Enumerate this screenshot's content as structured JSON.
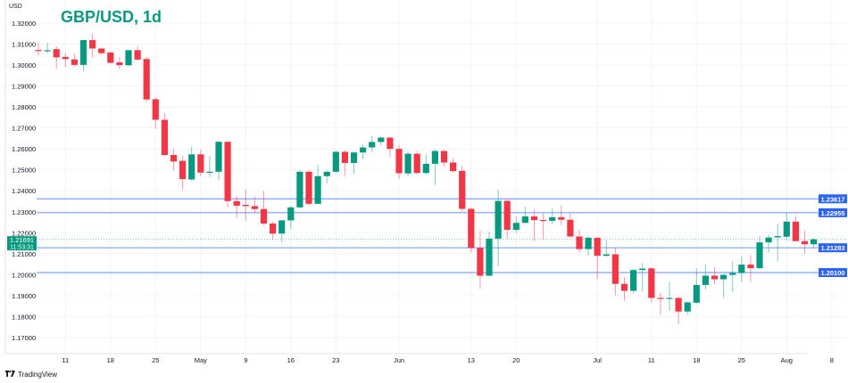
{
  "chart_data": {
    "type": "candlestick",
    "title": "GBP/USD, 1d",
    "currency_label": "USD",
    "ylim": [
      1.165,
      1.325
    ],
    "y_ticks": [
      "1.32000",
      "1.31000",
      "1.30000",
      "1.29000",
      "1.28000",
      "1.27000",
      "1.26000",
      "1.25000",
      "1.24000",
      "1.23000",
      "1.22000",
      "1.21000",
      "1.20000",
      "1.19000",
      "1.18000",
      "1.17000"
    ],
    "x_ticks": [
      {
        "label": "11",
        "date": "2022-04-11"
      },
      {
        "label": "18",
        "date": "2022-04-18"
      },
      {
        "label": "25",
        "date": "2022-04-25"
      },
      {
        "label": "May",
        "date": "2022-05-02"
      },
      {
        "label": "9",
        "date": "2022-05-09"
      },
      {
        "label": "16",
        "date": "2022-05-16"
      },
      {
        "label": "23",
        "date": "2022-05-23"
      },
      {
        "label": "Jun",
        "date": "2022-06-01"
      },
      {
        "label": "13",
        "date": "2022-06-13"
      },
      {
        "label": "20",
        "date": "2022-06-20"
      },
      {
        "label": "Jul",
        "date": "2022-07-01"
      },
      {
        "label": "11",
        "date": "2022-07-11"
      },
      {
        "label": "18",
        "date": "2022-07-18"
      },
      {
        "label": "25",
        "date": "2022-07-25"
      },
      {
        "label": "Aug",
        "date": "2022-08-01"
      },
      {
        "label": "8",
        "date": "2022-08-08"
      }
    ],
    "grid": true,
    "colors": {
      "up": "#089981",
      "down": "#f23645",
      "level_line": "#2962ff",
      "grid": "#f0f3fa"
    },
    "horizontal_levels": [
      {
        "value": 1.23617,
        "label": "1.23617"
      },
      {
        "value": 1.22955,
        "label": "1.22955"
      },
      {
        "value": 1.21283,
        "label": "1.21283"
      },
      {
        "value": 1.201,
        "label": "1.20100"
      }
    ],
    "last_price": {
      "value": 1.21691,
      "label": "1.21691",
      "countdown": "11:53:31"
    },
    "columns": [
      "date",
      "open",
      "high",
      "low",
      "close"
    ],
    "candles": [
      [
        "2022-04-06",
        1.3072,
        1.3107,
        1.3047,
        1.3069
      ],
      [
        "2022-04-07",
        1.3069,
        1.3107,
        1.3054,
        1.3071
      ],
      [
        "2022-04-08",
        1.3076,
        1.3089,
        1.2983,
        1.3037
      ],
      [
        "2022-04-11",
        1.3039,
        1.3057,
        1.299,
        1.3029
      ],
      [
        "2022-04-12",
        1.3027,
        1.3054,
        1.2994,
        1.3001
      ],
      [
        "2022-04-13",
        1.3001,
        1.312,
        1.2971,
        1.3119
      ],
      [
        "2022-04-14",
        1.3119,
        1.315,
        1.3036,
        1.3079
      ],
      [
        "2022-04-15",
        1.3079,
        1.3083,
        1.305,
        1.3057
      ],
      [
        "2022-04-18",
        1.306,
        1.3064,
        1.3007,
        1.3011
      ],
      [
        "2022-04-19",
        1.3013,
        1.304,
        1.2981,
        1.3
      ],
      [
        "2022-04-20",
        1.2999,
        1.3074,
        1.2996,
        1.3071
      ],
      [
        "2022-04-21",
        1.3071,
        1.3091,
        1.3021,
        1.3026
      ],
      [
        "2022-04-22",
        1.3029,
        1.3039,
        1.2824,
        1.2836
      ],
      [
        "2022-04-25",
        1.2837,
        1.2846,
        1.2696,
        1.2739
      ],
      [
        "2022-04-26",
        1.2739,
        1.2771,
        1.2569,
        1.2571
      ],
      [
        "2022-04-27",
        1.2571,
        1.26,
        1.25,
        1.254
      ],
      [
        "2022-04-28",
        1.2543,
        1.2567,
        1.2407,
        1.2456
      ],
      [
        "2022-04-29",
        1.2454,
        1.2611,
        1.245,
        1.2574
      ],
      [
        "2022-05-02",
        1.2574,
        1.2596,
        1.2469,
        1.2487
      ],
      [
        "2022-05-03",
        1.2487,
        1.2566,
        1.2466,
        1.2491
      ],
      [
        "2022-05-04",
        1.2491,
        1.2637,
        1.2449,
        1.2634
      ],
      [
        "2022-05-05",
        1.2634,
        1.2636,
        1.2321,
        1.2351
      ],
      [
        "2022-05-06",
        1.2351,
        1.2376,
        1.2271,
        1.2329
      ],
      [
        "2022-05-09",
        1.2333,
        1.2404,
        1.2258,
        1.2327
      ],
      [
        "2022-05-10",
        1.2327,
        1.2373,
        1.2293,
        1.2313
      ],
      [
        "2022-05-11",
        1.2313,
        1.2399,
        1.2237,
        1.2244
      ],
      [
        "2022-05-12",
        1.2244,
        1.2253,
        1.2165,
        1.2196
      ],
      [
        "2022-05-13",
        1.2196,
        1.2262,
        1.2155,
        1.2259
      ],
      [
        "2022-05-16",
        1.2259,
        1.2328,
        1.2219,
        1.2321
      ],
      [
        "2022-05-17",
        1.2321,
        1.2498,
        1.2318,
        1.2491
      ],
      [
        "2022-05-18",
        1.2491,
        1.2499,
        1.233,
        1.2338
      ],
      [
        "2022-05-19",
        1.2338,
        1.2524,
        1.2335,
        1.247
      ],
      [
        "2022-05-20",
        1.247,
        1.2499,
        1.2436,
        1.2491
      ],
      [
        "2022-05-23",
        1.2491,
        1.259,
        1.2485,
        1.2586
      ],
      [
        "2022-05-24",
        1.2586,
        1.2594,
        1.2471,
        1.2533
      ],
      [
        "2022-05-25",
        1.2533,
        1.2588,
        1.2481,
        1.2583
      ],
      [
        "2022-05-26",
        1.2583,
        1.2621,
        1.2552,
        1.2607
      ],
      [
        "2022-05-27",
        1.2607,
        1.2662,
        1.2584,
        1.2633
      ],
      [
        "2022-05-30",
        1.2633,
        1.2658,
        1.2617,
        1.2654
      ],
      [
        "2022-05-31",
        1.2654,
        1.2656,
        1.2562,
        1.26
      ],
      [
        "2022-06-01",
        1.26,
        1.2618,
        1.2458,
        1.2484
      ],
      [
        "2022-06-02",
        1.2483,
        1.2587,
        1.2469,
        1.2577
      ],
      [
        "2022-06-03",
        1.2577,
        1.259,
        1.2481,
        1.2485
      ],
      [
        "2022-06-06",
        1.2485,
        1.2575,
        1.2476,
        1.2529
      ],
      [
        "2022-06-07",
        1.2529,
        1.2599,
        1.2428,
        1.259
      ],
      [
        "2022-06-08",
        1.259,
        1.2596,
        1.2513,
        1.2535
      ],
      [
        "2022-06-09",
        1.2535,
        1.2556,
        1.2488,
        1.2494
      ],
      [
        "2022-06-10",
        1.2495,
        1.2519,
        1.2301,
        1.2314
      ],
      [
        "2022-06-13",
        1.2314,
        1.2321,
        1.2105,
        1.2128
      ],
      [
        "2022-06-14",
        1.2128,
        1.221,
        1.1935,
        1.1995
      ],
      [
        "2022-06-15",
        1.1995,
        1.2205,
        1.1992,
        1.2172
      ],
      [
        "2022-06-16",
        1.2172,
        1.2406,
        1.2042,
        1.2352
      ],
      [
        "2022-06-17",
        1.2352,
        1.236,
        1.2172,
        1.2214
      ],
      [
        "2022-06-20",
        1.2214,
        1.2278,
        1.22,
        1.2247
      ],
      [
        "2022-06-21",
        1.2247,
        1.2324,
        1.2244,
        1.2278
      ],
      [
        "2022-06-22",
        1.2278,
        1.231,
        1.2162,
        1.226
      ],
      [
        "2022-06-23",
        1.2261,
        1.2292,
        1.2169,
        1.2257
      ],
      [
        "2022-06-24",
        1.2257,
        1.2318,
        1.224,
        1.2274
      ],
      [
        "2022-06-27",
        1.2274,
        1.2332,
        1.2236,
        1.2262
      ],
      [
        "2022-06-28",
        1.2262,
        1.2292,
        1.2179,
        1.2182
      ],
      [
        "2022-06-29",
        1.2182,
        1.2212,
        1.2105,
        1.2122
      ],
      [
        "2022-06-30",
        1.2122,
        1.2186,
        1.2091,
        1.2176
      ],
      [
        "2022-07-01",
        1.2176,
        1.2177,
        1.1978,
        1.209
      ],
      [
        "2022-07-04",
        1.209,
        1.2165,
        1.2085,
        1.2097
      ],
      [
        "2022-07-05",
        1.2097,
        1.2127,
        1.19,
        1.1956
      ],
      [
        "2022-07-06",
        1.1956,
        1.1988,
        1.1876,
        1.1923
      ],
      [
        "2022-07-07",
        1.1923,
        1.2027,
        1.191,
        1.2022
      ],
      [
        "2022-07-08",
        1.2022,
        1.2056,
        1.192,
        1.2029
      ],
      [
        "2022-07-11",
        1.203,
        1.2034,
        1.1868,
        1.1889
      ],
      [
        "2022-07-12",
        1.1889,
        1.1914,
        1.1808,
        1.1886
      ],
      [
        "2022-07-13",
        1.1886,
        1.1968,
        1.1827,
        1.1889
      ],
      [
        "2022-07-14",
        1.1889,
        1.1893,
        1.1762,
        1.1824
      ],
      [
        "2022-07-15",
        1.1824,
        1.1872,
        1.1807,
        1.1868
      ],
      [
        "2022-07-18",
        1.1866,
        1.2031,
        1.1862,
        1.1951
      ],
      [
        "2022-07-19",
        1.1951,
        1.2049,
        1.1929,
        1.1995
      ],
      [
        "2022-07-20",
        1.1995,
        1.2035,
        1.1954,
        1.1978
      ],
      [
        "2022-07-21",
        1.1978,
        1.2002,
        1.189,
        1.1999
      ],
      [
        "2022-07-22",
        1.1999,
        1.2063,
        1.1919,
        1.2008
      ],
      [
        "2022-07-25",
        1.2008,
        1.2087,
        1.1964,
        1.2048
      ],
      [
        "2022-07-26",
        1.2048,
        1.2092,
        1.1964,
        1.2031
      ],
      [
        "2022-07-27",
        1.2031,
        1.2184,
        1.2024,
        1.2154
      ],
      [
        "2022-07-28",
        1.2154,
        1.2191,
        1.2106,
        1.2177
      ],
      [
        "2022-07-29",
        1.2178,
        1.2243,
        1.2065,
        1.2184
      ],
      [
        "2022-08-01",
        1.2181,
        1.2294,
        1.2162,
        1.2253
      ],
      [
        "2022-08-02",
        1.2253,
        1.228,
        1.2158,
        1.216
      ],
      [
        "2022-08-03",
        1.216,
        1.2209,
        1.2099,
        1.2145
      ],
      [
        "2022-08-04",
        1.2145,
        1.2174,
        1.2127,
        1.2169
      ]
    ]
  },
  "branding": {
    "logo_text": "TV",
    "name": "TradingView"
  }
}
